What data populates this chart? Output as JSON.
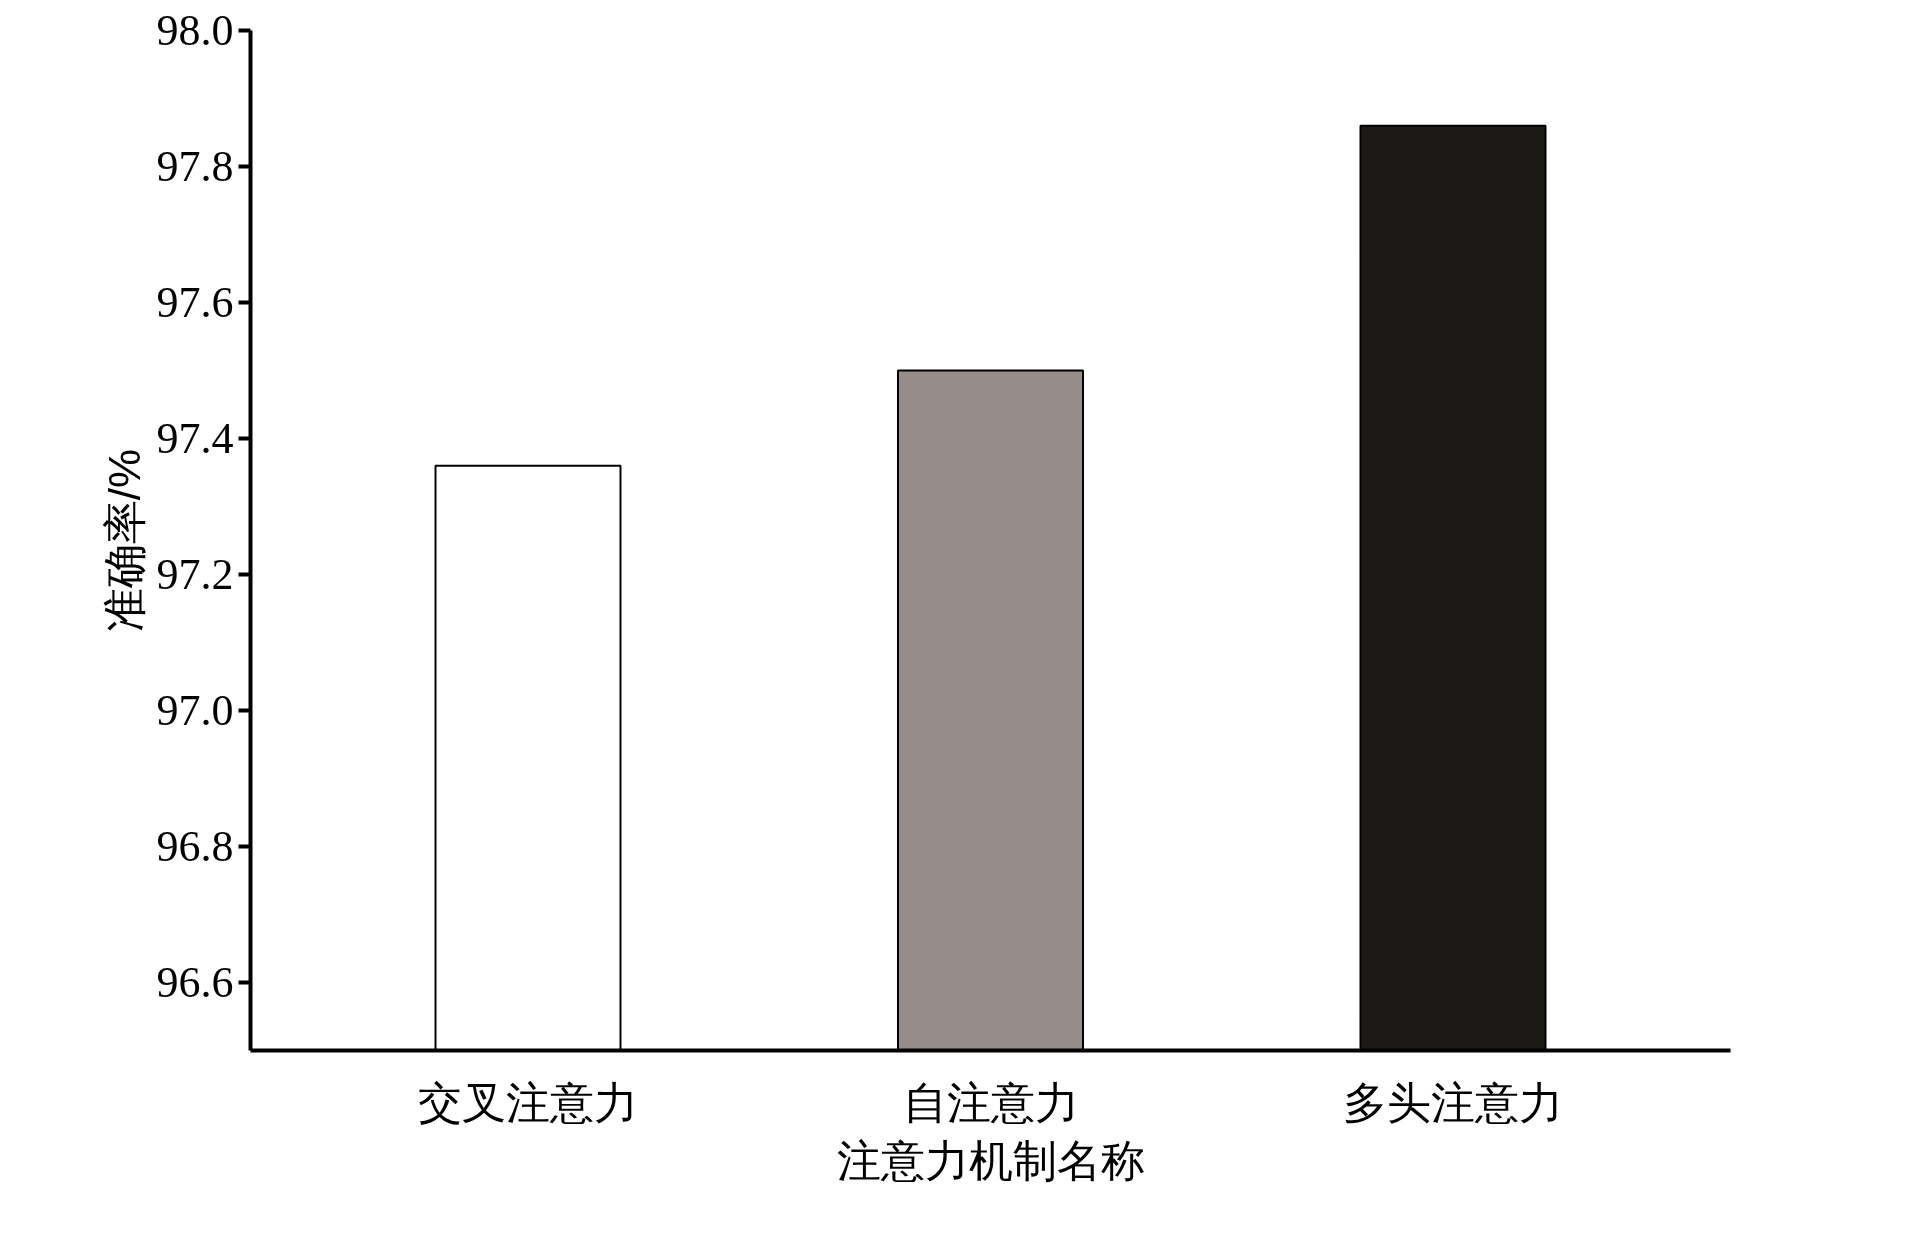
{
  "chart_data": {
    "type": "bar",
    "xlabel": "注意力机制名称",
    "ylabel": "准确率/%",
    "categories": [
      "交叉注意力",
      "自注意力",
      "多头注意力"
    ],
    "values": [
      97.36,
      97.5,
      97.86
    ],
    "colors": [
      "#ffffff",
      "#968d8a",
      "#1c1a17"
    ],
    "ylim": [
      96.5,
      98.0
    ],
    "yticks": [
      96.6,
      96.8,
      {
        "value": 97.0,
        "label": "97.0"
      },
      97.2,
      97.4,
      97.6,
      97.8,
      {
        "value": 98.0,
        "label": "98.0"
      }
    ],
    "grid": false
  }
}
